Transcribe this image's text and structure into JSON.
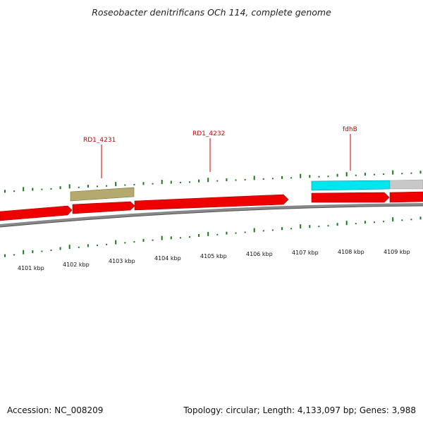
{
  "title": "Roseobacter denitrificans OCh 114, complete genome",
  "footer": {
    "accession": "Accession: NC_008209",
    "summary": "Topology: circular; Length: 4,133,097 bp; Genes: 3,988"
  },
  "colors": {
    "cds": "#ee0000",
    "cds_highlight": "#00e5ee",
    "cds_olive": "#b5aa6e",
    "cds_gray": "#c8c8c8",
    "backbone": "#888888",
    "gc_tick": "#1a7a1a",
    "label": "#cc0000"
  },
  "scale_ticks": [
    "4101 kbp",
    "4102 kbp",
    "4103 kbp",
    "4104 kbp",
    "4105 kbp",
    "4106 kbp",
    "4107 kbp",
    "4108 kbp",
    "4109 kbp"
  ],
  "gene_labels": [
    "RD1_4231",
    "RD1_4232",
    "fdhB"
  ]
}
